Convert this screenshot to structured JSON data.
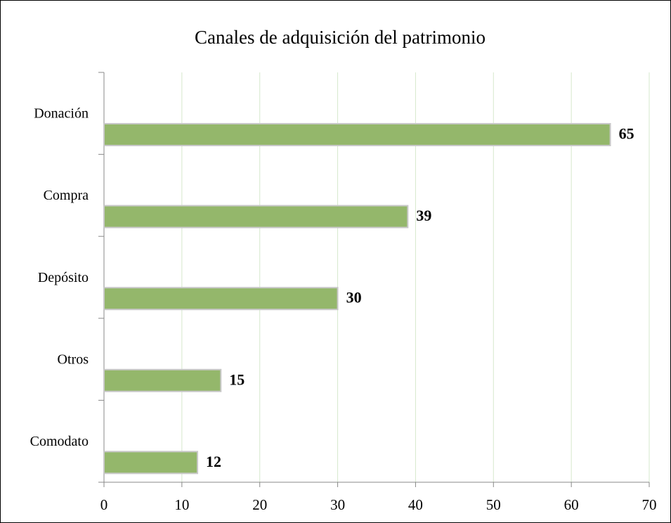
{
  "chart_data": {
    "type": "bar",
    "orientation": "horizontal",
    "title": "Canales de adquisición del patrimonio",
    "categories": [
      "Donación",
      "Compra",
      "Depósito",
      "Otros",
      "Comodato"
    ],
    "values": [
      65,
      39,
      30,
      15,
      12
    ],
    "color": "#94b76b",
    "xlim": [
      0,
      70
    ],
    "xticks": [
      0,
      10,
      20,
      30,
      40,
      50,
      60,
      70
    ],
    "grid": true
  }
}
